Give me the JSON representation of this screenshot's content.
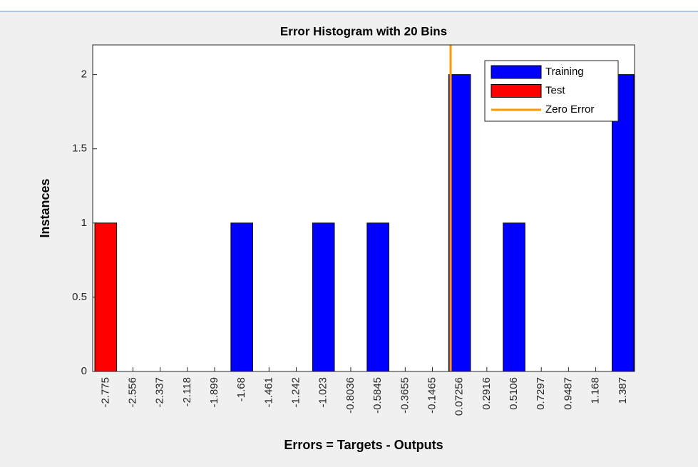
{
  "chart_data": {
    "type": "histogram",
    "title": "Error Histogram with 20 Bins",
    "xlabel": "Errors = Targets - Outputs",
    "ylabel": "Instances",
    "x": [
      -2.775,
      -2.556,
      -2.337,
      -2.118,
      -1.899,
      -1.68,
      -1.461,
      -1.242,
      -1.023,
      -0.8036,
      -0.5845,
      -0.3655,
      -0.1465,
      0.07256,
      0.2916,
      0.5106,
      0.7297,
      0.9487,
      1.168,
      1.387
    ],
    "series": [
      {
        "name": "Test",
        "color": "#ff0000",
        "values": [
          1,
          0,
          0,
          0,
          0,
          0,
          0,
          0,
          0,
          0,
          0,
          0,
          0,
          0,
          0,
          0,
          0,
          0,
          0,
          0
        ]
      },
      {
        "name": "Training",
        "color": "#0000ff",
        "values": [
          0,
          0,
          0,
          0,
          0,
          1,
          0,
          0,
          1,
          0,
          1,
          0,
          0,
          2,
          0,
          1,
          0,
          0,
          0,
          2
        ]
      }
    ],
    "reference_line": {
      "name": "Zero Error",
      "color": "#ff9900",
      "x": 0
    },
    "legend_order": [
      "Training",
      "Test",
      "Zero Error"
    ],
    "legend": "upper right",
    "xlim": [
      -2.88,
      1.48
    ],
    "xticks": [
      -2.775,
      -2.556,
      -2.337,
      -2.118,
      -1.899,
      -1.68,
      -1.461,
      -1.242,
      -1.023,
      -0.8036,
      -0.5845,
      -0.3655,
      -0.1465,
      0.07256,
      0.2916,
      0.5106,
      0.7297,
      0.9487,
      1.168,
      1.387
    ],
    "ylim": [
      0,
      2.2
    ],
    "yticks": [
      0,
      0.5,
      1,
      1.5,
      2
    ]
  }
}
